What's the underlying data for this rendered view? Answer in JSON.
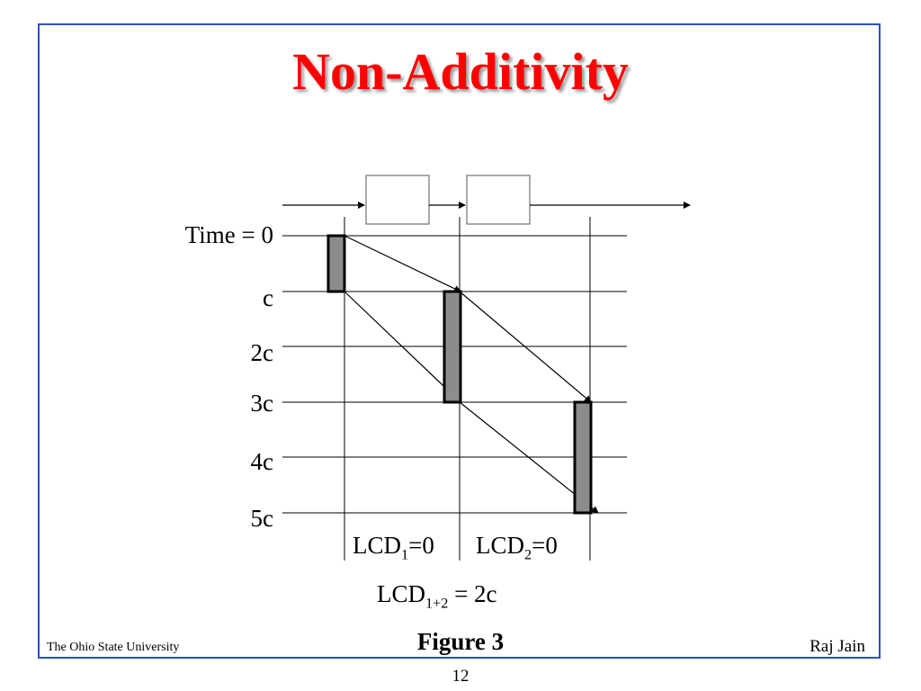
{
  "slide": {
    "title": "Non-Additivity",
    "caption": "Figure 3",
    "footer_left": "The Ohio State University",
    "footer_right": "Raj Jain",
    "page_number": "12"
  },
  "diagram": {
    "time_labels": [
      "Time = 0",
      "c",
      "2c",
      "3c",
      "4c",
      "5c"
    ],
    "lcd1": {
      "base": "LCD",
      "sub": "1",
      "value": "=0"
    },
    "lcd2": {
      "base": "LCD",
      "sub": "2",
      "value": "=0"
    },
    "lcd12": {
      "base": "LCD",
      "sub": "1+2",
      "value": " = 2c"
    },
    "colors": {
      "bar_fill": "#8c8c8c",
      "line": "#000000",
      "title": "#ff0000",
      "frame": "#2f4fbf"
    }
  }
}
